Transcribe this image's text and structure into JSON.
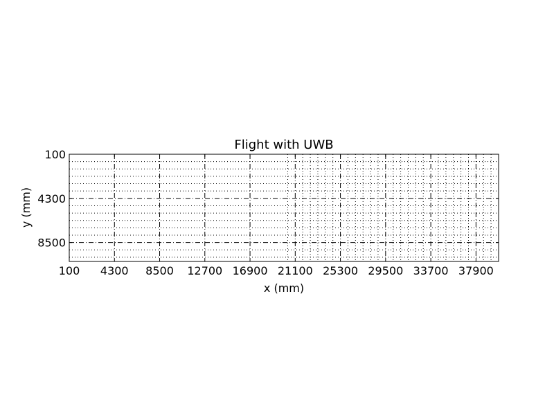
{
  "chart_data": {
    "type": "scatter",
    "title": "Flight with UWB",
    "xlabel": "x (mm)",
    "ylabel": "y (mm)",
    "xlim": [
      100,
      40000
    ],
    "ylim": [
      10300,
      100
    ],
    "y_inverted": true,
    "x_ticks": [
      100,
      4300,
      8500,
      12700,
      16900,
      21100,
      25300,
      29500,
      33700,
      37900
    ],
    "y_ticks": [
      100,
      4300,
      8500
    ],
    "x_tick_labels": [
      "100",
      "4300",
      "8500",
      "12700",
      "16900",
      "21100",
      "25300",
      "29500",
      "33700",
      "37900"
    ],
    "y_tick_labels": [
      "100",
      "4300",
      "8500"
    ],
    "major_grid": "dash-dot",
    "minor_grid": "dotted",
    "minor_grid_y_step": 700,
    "minor_grid_x_step": 700,
    "minor_grid_x_start": 20400,
    "series": [],
    "legend": "none"
  },
  "colors": {
    "axes": "#000000",
    "background": "#ffffff"
  }
}
